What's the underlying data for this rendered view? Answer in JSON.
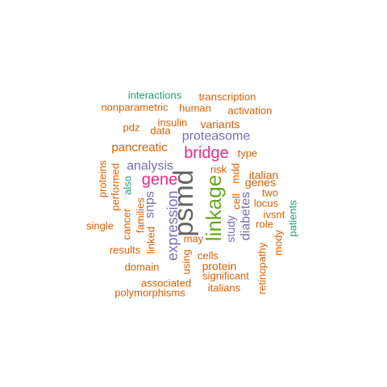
{
  "palette": {
    "orange": "#d95f02",
    "purple": "#7570b3",
    "teal": "#1b9e77",
    "magenta": "#e7298a",
    "green": "#66a61e",
    "gray": "#666666"
  },
  "words": [
    {
      "text": "psmd",
      "color": "gray"
    },
    {
      "text": "linkage",
      "color": "green"
    },
    {
      "text": "bridge",
      "color": "magenta"
    },
    {
      "text": "gene",
      "color": "magenta"
    },
    {
      "text": "expression",
      "color": "purple"
    },
    {
      "text": "analysis",
      "color": "purple"
    },
    {
      "text": "proteasome",
      "color": "purple"
    },
    {
      "text": "snps",
      "color": "purple"
    },
    {
      "text": "pancreatic",
      "color": "orange"
    },
    {
      "text": "diabetes",
      "color": "purple"
    },
    {
      "text": "study",
      "color": "purple"
    },
    {
      "text": "variants",
      "color": "orange"
    },
    {
      "text": "genes",
      "color": "orange"
    },
    {
      "text": "italian",
      "color": "orange"
    },
    {
      "text": "insulin",
      "color": "orange"
    },
    {
      "text": "type",
      "color": "orange"
    },
    {
      "text": "risk",
      "color": "orange"
    },
    {
      "text": "protein",
      "color": "orange"
    },
    {
      "text": "cells",
      "color": "orange"
    },
    {
      "text": "may",
      "color": "orange"
    },
    {
      "text": "linked",
      "color": "orange"
    },
    {
      "text": "families",
      "color": "orange"
    },
    {
      "text": "cancer",
      "color": "orange"
    },
    {
      "text": "performed",
      "color": "orange"
    },
    {
      "text": "proteins",
      "color": "orange"
    },
    {
      "text": "using",
      "color": "orange"
    },
    {
      "text": "mdd",
      "color": "orange"
    },
    {
      "text": "cell",
      "color": "orange"
    },
    {
      "text": "locus",
      "color": "orange"
    },
    {
      "text": "two",
      "color": "orange"
    },
    {
      "text": "role",
      "color": "orange"
    },
    {
      "text": "ivsnt",
      "color": "orange"
    },
    {
      "text": "mody",
      "color": "orange"
    },
    {
      "text": "retinopathy",
      "color": "orange"
    },
    {
      "text": "patients",
      "color": "teal"
    },
    {
      "text": "also",
      "color": "teal"
    },
    {
      "text": "interactions",
      "color": "teal"
    },
    {
      "text": "transcription",
      "color": "orange"
    },
    {
      "text": "nonparametric",
      "color": "orange"
    },
    {
      "text": "human",
      "color": "orange"
    },
    {
      "text": "activation",
      "color": "orange"
    },
    {
      "text": "pdz",
      "color": "orange"
    },
    {
      "text": "data",
      "color": "orange"
    },
    {
      "text": "single",
      "color": "orange"
    },
    {
      "text": "results",
      "color": "orange"
    },
    {
      "text": "domain",
      "color": "orange"
    },
    {
      "text": "associated",
      "color": "orange"
    },
    {
      "text": "significant",
      "color": "orange"
    },
    {
      "text": "italians",
      "color": "orange"
    },
    {
      "text": "polymorphisms",
      "color": "orange"
    }
  ]
}
